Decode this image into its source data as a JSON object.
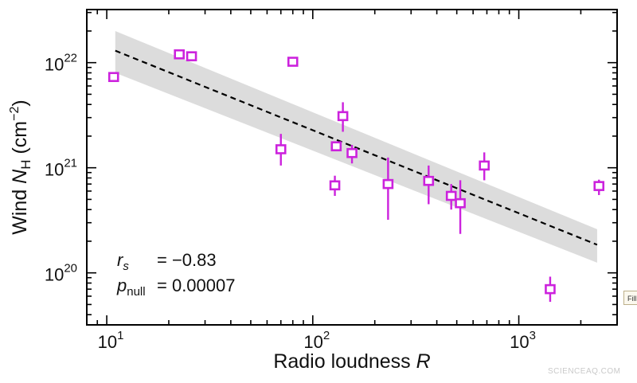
{
  "chart_data": {
    "type": "scatter",
    "xlabel_main": "Radio loudness ",
    "xlabel_var": "R",
    "ylabel_main": "Wind ",
    "ylabel_var": "N",
    "ylabel_sub": "H",
    "ylabel_unit_open": " (cm",
    "ylabel_unit_sup": "−2",
    "ylabel_unit_close": ")",
    "x_scale": "log",
    "y_scale": "log",
    "xlim": [
      8,
      3000
    ],
    "ylim": [
      3.2e+19,
      3.2e+22
    ],
    "x_ticks": [
      {
        "value": 10,
        "base": "10",
        "exp": "1"
      },
      {
        "value": 100,
        "base": "10",
        "exp": "2"
      },
      {
        "value": 1000,
        "base": "10",
        "exp": "3"
      }
    ],
    "y_ticks": [
      {
        "value": 1e+20,
        "base": "10",
        "exp": "20"
      },
      {
        "value": 1e+21,
        "base": "10",
        "exp": "21"
      },
      {
        "value": 1e+22,
        "base": "10",
        "exp": "22"
      }
    ],
    "marker_color": "#cc22dd",
    "fit_color": "#000000",
    "band_color": "#dcdcdc",
    "fit_line": {
      "x": [
        11,
        2400
      ],
      "y": [
        1.3e+22,
        1.85e+20
      ]
    },
    "confidence_band": {
      "x": [
        11,
        2400
      ],
      "upper": [
        2e+22,
        2.6e+20
      ],
      "lower": [
        8e+21,
        1.25e+20
      ]
    },
    "points": [
      {
        "x": 10.8,
        "y": 7.3e+21
      },
      {
        "x": 22.5,
        "y": 1.2e+22
      },
      {
        "x": 25.8,
        "y": 1.15e+22
      },
      {
        "x": 70,
        "y": 1.5e+21,
        "ylo": 1.05e+21,
        "yhi": 2.1e+21
      },
      {
        "x": 80,
        "y": 1.02e+22
      },
      {
        "x": 128,
        "y": 6.8e+20,
        "ylo": 5.4e+20,
        "yhi": 8.4e+20
      },
      {
        "x": 130,
        "y": 1.6e+21
      },
      {
        "x": 140,
        "y": 3.1e+21,
        "ylo": 2.2e+21,
        "yhi": 4.2e+21
      },
      {
        "x": 155,
        "y": 1.38e+21,
        "ylo": 1.1e+21,
        "yhi": 1.65e+21
      },
      {
        "x": 232,
        "y": 7e+20,
        "ylo": 3.2e+20,
        "yhi": 1.25e+21
      },
      {
        "x": 365,
        "y": 7.5e+20,
        "ylo": 4.5e+20,
        "yhi": 1.05e+21
      },
      {
        "x": 470,
        "y": 5.4e+20,
        "ylo": 4e+20,
        "yhi": 7e+20
      },
      {
        "x": 520,
        "y": 4.6e+20,
        "ylo": 2.35e+20,
        "yhi": 7.6e+20
      },
      {
        "x": 680,
        "y": 1.05e+21,
        "ylo": 7.6e+20,
        "yhi": 1.4e+21
      },
      {
        "x": 1420,
        "y": 7e+19,
        "ylo": 5.3e+19,
        "yhi": 9.2e+19
      },
      {
        "x": 2450,
        "y": 6.7e+20,
        "ylo": 5.5e+20,
        "yhi": 7.7e+20
      }
    ],
    "stats": {
      "rs_symbol": "r",
      "rs_sub": "s",
      "rs_value": "= −0.83",
      "p_symbol": "p",
      "p_sub": "null",
      "p_value": "= 0.00007"
    }
  },
  "ui": {
    "fill_tab": "Fill",
    "watermark": "SCIENCEAQ.COM"
  }
}
